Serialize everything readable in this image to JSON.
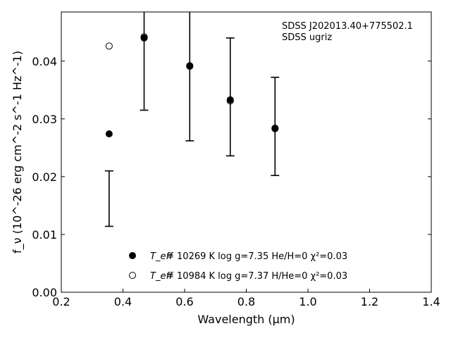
{
  "chart_data": {
    "type": "scatter",
    "xlabel": "Wavelength (μm)",
    "ylabel": "f_ν (10^-26 erg cm^-2 s^-1 Hz^-1)",
    "xlim": [
      0.2,
      1.4
    ],
    "ylim": [
      0.0,
      0.0485
    ],
    "xticks": [
      0.2,
      0.4,
      0.6,
      0.8,
      1.0,
      1.2,
      1.4
    ],
    "xtick_labels": [
      "0.2",
      "0.4",
      "0.6",
      "0.8",
      "1.0",
      "1.2",
      "1.4"
    ],
    "yticks": [
      0.0,
      0.01,
      0.02,
      0.03,
      0.04
    ],
    "ytick_labels": [
      "0.00",
      "0.01",
      "0.02",
      "0.03",
      "0.04"
    ],
    "grid": false,
    "annotation": [
      "SDSS J202013.40+775502.1",
      "SDSS ugriz"
    ],
    "observed": {
      "x": [
        0.3551,
        0.4686,
        0.6166,
        0.748,
        0.8932
      ],
      "y": [
        0.0162,
        0.0442,
        0.041,
        0.0338,
        0.0287
      ],
      "err": [
        0.0048,
        0.0127,
        0.0148,
        0.0102,
        0.0085
      ]
    },
    "series": [
      {
        "marker": "filled-circle",
        "x": [
          0.3551,
          0.4686,
          0.6166,
          0.748,
          0.8932
        ],
        "y": [
          0.0274,
          0.044,
          0.0392,
          0.0333,
          0.0284
        ]
      },
      {
        "marker": "open-circle",
        "x": [
          0.3551,
          0.4686,
          0.6166,
          0.748,
          0.8932
        ],
        "y": [
          0.0426,
          0.0442,
          0.0391,
          0.0331,
          0.0283
        ]
      }
    ],
    "legend": {
      "placement": "bottom-center",
      "entries": [
        {
          "marker": "filled-circle",
          "teff_label": "T_eff",
          "text": "= 10269 K  log g=7.35  He/H=0  χ²=0.03"
        },
        {
          "marker": "open-circle",
          "teff_label": "T_eff",
          "text": "= 10984 K  log g=7.37  H/He=0  χ²=0.03"
        }
      ]
    }
  }
}
